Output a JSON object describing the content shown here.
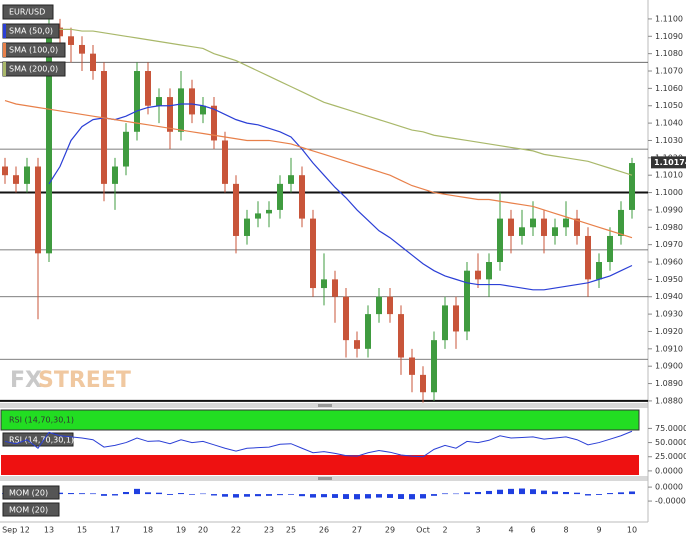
{
  "chart_data": [
    {
      "type": "candlestick",
      "symbol": "EUR/USD",
      "watermark": [
        "FX",
        "STREET"
      ],
      "categories": [
        null,
        "Sep 12",
        null,
        null,
        "13",
        null,
        null,
        "15",
        null,
        null,
        "17",
        null,
        null,
        "18",
        null,
        null,
        "19",
        null,
        "20",
        null,
        null,
        "22",
        null,
        null,
        "23",
        null,
        "25",
        null,
        null,
        "26",
        null,
        null,
        "27",
        null,
        null,
        "29",
        null,
        null,
        "Oct",
        null,
        "2",
        null,
        null,
        "3",
        null,
        null,
        "4",
        null,
        "6",
        null,
        null,
        "8",
        null,
        null,
        "9",
        null,
        null,
        "10"
      ],
      "ohlc": [
        [
          1.1015,
          1.102,
          1.1005,
          1.101
        ],
        [
          1.101,
          1.1015,
          1.1,
          1.1005
        ],
        [
          1.1005,
          1.102,
          1.1,
          1.1015
        ],
        [
          1.1015,
          1.102,
          1.0927,
          1.0965
        ],
        [
          1.0965,
          1.1105,
          1.096,
          1.1095
        ],
        [
          1.1095,
          1.11,
          1.108,
          1.109
        ],
        [
          1.109,
          1.1095,
          1.1075,
          1.1085
        ],
        [
          1.1085,
          1.109,
          1.107,
          1.108
        ],
        [
          1.108,
          1.1085,
          1.1065,
          1.107
        ],
        [
          1.107,
          1.1075,
          1.0995,
          1.1005
        ],
        [
          1.1005,
          1.102,
          1.099,
          1.1015
        ],
        [
          1.1015,
          1.104,
          1.101,
          1.1035
        ],
        [
          1.1035,
          1.1075,
          1.103,
          1.107
        ],
        [
          1.107,
          1.1075,
          1.1045,
          1.105
        ],
        [
          1.105,
          1.106,
          1.104,
          1.1055
        ],
        [
          1.1055,
          1.106,
          1.1025,
          1.1035
        ],
        [
          1.1035,
          1.107,
          1.103,
          1.106
        ],
        [
          1.106,
          1.1065,
          1.104,
          1.1045
        ],
        [
          1.1045,
          1.1055,
          1.104,
          1.105
        ],
        [
          1.105,
          1.1055,
          1.1025,
          1.103
        ],
        [
          1.103,
          1.1035,
          1.1,
          1.1005
        ],
        [
          1.1005,
          1.101,
          1.0965,
          1.0975
        ],
        [
          1.0975,
          1.099,
          1.097,
          1.0985
        ],
        [
          1.0985,
          1.0995,
          1.098,
          1.0988
        ],
        [
          1.0988,
          1.0995,
          1.098,
          1.099
        ],
        [
          1.099,
          1.101,
          1.0985,
          1.1005
        ],
        [
          1.1005,
          1.102,
          1.1,
          1.101
        ],
        [
          1.101,
          1.1015,
          1.098,
          1.0985
        ],
        [
          1.0985,
          1.099,
          1.094,
          1.0945
        ],
        [
          1.0945,
          1.0965,
          1.0935,
          1.095
        ],
        [
          1.095,
          1.0955,
          1.0925,
          1.094
        ],
        [
          1.094,
          1.0945,
          1.0905,
          1.0915
        ],
        [
          1.0915,
          1.092,
          1.0905,
          1.091
        ],
        [
          1.091,
          1.0935,
          1.0905,
          1.093
        ],
        [
          1.093,
          1.0945,
          1.0925,
          1.094
        ],
        [
          1.094,
          1.0945,
          1.0925,
          1.093
        ],
        [
          1.093,
          1.0935,
          1.0895,
          1.0905
        ],
        [
          1.0905,
          1.091,
          1.0885,
          1.0895
        ],
        [
          1.0895,
          1.09,
          1.0879,
          1.0885
        ],
        [
          1.0885,
          1.092,
          1.088,
          1.0915
        ],
        [
          1.0915,
          1.094,
          1.091,
          1.0935
        ],
        [
          1.0935,
          1.094,
          1.091,
          1.092
        ],
        [
          1.092,
          1.096,
          1.0915,
          1.0955
        ],
        [
          1.0955,
          1.0965,
          1.0945,
          1.095
        ],
        [
          1.095,
          1.0965,
          1.094,
          1.096
        ],
        [
          1.096,
          1.1,
          1.0955,
          1.0985
        ],
        [
          1.0985,
          1.099,
          1.0965,
          1.0975
        ],
        [
          1.0975,
          1.099,
          1.097,
          1.098
        ],
        [
          1.098,
          1.0995,
          1.0975,
          1.0985
        ],
        [
          1.0985,
          1.099,
          1.0965,
          1.0975
        ],
        [
          1.0975,
          1.0985,
          1.097,
          1.098
        ],
        [
          1.098,
          1.0995,
          1.0975,
          1.0985
        ],
        [
          1.0985,
          1.099,
          1.097,
          1.0975
        ],
        [
          1.0975,
          1.098,
          1.094,
          1.095
        ],
        [
          1.095,
          1.0965,
          1.0945,
          1.096
        ],
        [
          1.096,
          1.098,
          1.0955,
          1.0975
        ],
        [
          1.0975,
          1.0995,
          1.097,
          1.099
        ],
        [
          1.099,
          1.102,
          1.0985,
          1.1017
        ]
      ],
      "up_color": "#3f9b3f",
      "down_color": "#c8553a",
      "series": [
        {
          "name": "SMA (50,0)",
          "color": "#2b3fd6",
          "values": [
            null,
            null,
            null,
            null,
            1.1005,
            1.1015,
            1.103,
            1.1038,
            1.1042,
            1.1043,
            1.1042,
            1.1044,
            1.1047,
            1.1049,
            1.105,
            1.105,
            1.1051,
            1.1051,
            1.105,
            1.1048,
            1.1045,
            1.1042,
            1.104,
            1.1039,
            1.1037,
            1.1035,
            1.1032,
            1.1025,
            1.1017,
            1.101,
            1.1003,
            1.0997,
            1.099,
            1.0984,
            1.0978,
            1.0974,
            1.0969,
            1.0964,
            1.0959,
            1.0955,
            1.0952,
            1.095,
            1.0948,
            1.0947,
            1.0947,
            1.0947,
            1.0946,
            1.0945,
            1.0944,
            1.0944,
            1.0945,
            1.0946,
            1.0947,
            1.0948,
            1.095,
            1.0952,
            1.0955,
            1.0958
          ]
        },
        {
          "name": "SMA (100,0)",
          "color": "#e8804a",
          "values": [
            1.1053,
            1.1051,
            1.105,
            1.1049,
            1.1048,
            1.1047,
            1.1046,
            1.1045,
            1.1044,
            1.1043,
            1.1042,
            1.1041,
            1.104,
            1.1039,
            1.1038,
            1.1037,
            1.1036,
            1.1035,
            1.1034,
            1.1033,
            1.1032,
            1.1031,
            1.103,
            1.103,
            1.103,
            1.1029,
            1.1028,
            1.1026,
            1.1024,
            1.1022,
            1.102,
            1.1018,
            1.1016,
            1.1014,
            1.1012,
            1.101,
            1.1007,
            1.1004,
            1.1002,
            1.1,
            1.0999,
            1.0998,
            1.0997,
            1.0996,
            1.0996,
            1.0995,
            1.0994,
            1.0993,
            1.0992,
            1.099,
            1.0988,
            1.0986,
            1.0984,
            1.0982,
            1.098,
            1.0978,
            1.0976,
            1.0974
          ]
        },
        {
          "name": "SMA (200,0)",
          "color": "#a9b86a",
          "values": [
            null,
            null,
            null,
            null,
            1.1094,
            1.1094,
            1.1094,
            1.1093,
            1.1093,
            1.1092,
            1.1091,
            1.109,
            1.1089,
            1.1088,
            1.1087,
            1.1086,
            1.1085,
            1.1084,
            1.1083,
            1.108,
            1.1078,
            1.1076,
            1.1073,
            1.107,
            1.1067,
            1.1064,
            1.1061,
            1.1058,
            1.1055,
            1.1052,
            1.105,
            1.1048,
            1.1046,
            1.1044,
            1.1042,
            1.104,
            1.1038,
            1.1036,
            1.1035,
            1.1033,
            1.1032,
            1.1031,
            1.103,
            1.1029,
            1.1028,
            1.1027,
            1.1026,
            1.1025,
            1.1024,
            1.1022,
            1.1021,
            1.102,
            1.1019,
            1.1018,
            1.1016,
            1.1014,
            1.1012,
            1.101
          ]
        }
      ],
      "levels": [
        1.1075,
        1.1025,
        1.0967,
        1.094,
        1.0904
      ],
      "major_levels": [
        1.1,
        1.088
      ],
      "last_price": {
        "value": 1.10174,
        "label": "1.10174"
      },
      "ylim": [
        1.08788,
        1.11109
      ],
      "yticks": [
        {
          "value": 1.088,
          "label": "1.0880"
        },
        {
          "value": 1.089,
          "label": "1.0890"
        },
        {
          "value": 1.09,
          "label": "1.0900"
        },
        {
          "value": 1.091,
          "label": "1.0910"
        },
        {
          "value": 1.092,
          "label": "1.0920"
        },
        {
          "value": 1.093,
          "label": "1.0930"
        },
        {
          "value": 1.094,
          "label": "1.0940"
        },
        {
          "value": 1.095,
          "label": "1.0950"
        },
        {
          "value": 1.096,
          "label": "1.0960"
        },
        {
          "value": 1.097,
          "label": "1.0970"
        },
        {
          "value": 1.098,
          "label": "1.0980"
        },
        {
          "value": 1.099,
          "label": "1.0990"
        },
        {
          "value": 1.1,
          "label": "1.1000"
        },
        {
          "value": 1.101,
          "label": "1.1010"
        },
        {
          "value": 1.102,
          "label": "1.1020"
        },
        {
          "value": 1.103,
          "label": "1.1030"
        },
        {
          "value": 1.104,
          "label": "1.1040"
        },
        {
          "value": 1.105,
          "label": "1.1050"
        },
        {
          "value": 1.106,
          "label": "1.1060"
        },
        {
          "value": 1.107,
          "label": "1.1070"
        },
        {
          "value": 1.108,
          "label": "1.1080"
        },
        {
          "value": 1.109,
          "label": "1.1090"
        },
        {
          "value": 1.11,
          "label": "1.1100"
        }
      ]
    },
    {
      "type": "line",
      "title": "RSI (14,70,30,1)",
      "series": [
        {
          "name": "RSI (14,70,30,1)",
          "color": "#2b3fd6",
          "values": [
            52,
            48,
            55,
            40,
            68,
            62,
            60,
            58,
            55,
            42,
            45,
            50,
            58,
            52,
            53,
            48,
            55,
            50,
            52,
            46,
            40,
            35,
            40,
            41,
            42,
            47,
            48,
            40,
            32,
            34,
            31,
            27,
            26,
            32,
            36,
            33,
            28,
            26,
            25,
            38,
            45,
            40,
            52,
            50,
            54,
            62,
            58,
            59,
            60,
            56,
            58,
            60,
            55,
            46,
            50,
            56,
            62,
            70
          ]
        }
      ],
      "ylim": [
        -9,
        111
      ],
      "yticks": [
        {
          "value": 75,
          "label": "75.0000"
        },
        {
          "value": 50,
          "label": "50.0000"
        },
        {
          "value": 25,
          "label": "25.0000"
        },
        {
          "value": 0,
          "label": "0.0000"
        }
      ]
    },
    {
      "type": "bar",
      "title": "MOM (20)",
      "series": [
        {
          "name": "MOM (20)",
          "color": "#1f3fe0",
          "values": [
            5e-06,
            -5e-06,
            8e-06,
            -2e-05,
            1e-05,
            8e-06,
            6e-06,
            5e-06,
            4e-06,
            -1e-05,
            -8e-06,
            1.2e-05,
            3e-05,
            1e-05,
            8e-06,
            -5e-06,
            6e-06,
            -4e-06,
            3e-06,
            -8e-06,
            -1.5e-05,
            -2e-05,
            -1.5e-05,
            -1.2e-05,
            -1e-05,
            -6e-06,
            -4e-06,
            -1.2e-05,
            -2e-05,
            -1.8e-05,
            -2.2e-05,
            -2.8e-05,
            -3e-05,
            -2.5e-05,
            -2e-05,
            -2.2e-05,
            -2.8e-05,
            -3e-05,
            -2.5e-05,
            -1e-05,
            4e-06,
            3e-06,
            1e-05,
            1.2e-05,
            1.8e-05,
            2.5e-05,
            3e-05,
            3.2e-05,
            2.8e-05,
            2e-05,
            1.5e-05,
            1.2e-05,
            8e-06,
            -8e-06,
            -5e-06,
            6e-06,
            1e-05,
            1.5e-05
          ]
        }
      ],
      "ylim": [
        -0.00016,
        7.5e-05
      ],
      "yticks": [
        {
          "value": 4e-05,
          "label": "0.0000"
        },
        {
          "value": -4e-05,
          "label": "-0.0000"
        }
      ]
    }
  ]
}
